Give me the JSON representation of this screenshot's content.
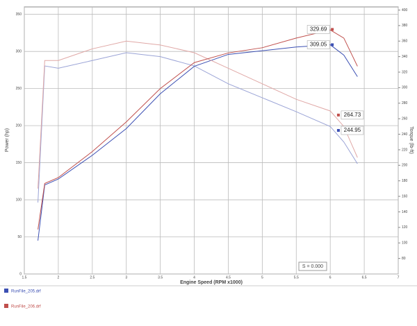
{
  "chart_data": {
    "type": "line",
    "xlabel": "Engine Speed (RPM x1000)",
    "ylabel": "Power (hp)",
    "y2label": "Torque (lb-ft)",
    "x": [
      1.7,
      1.8,
      2.0,
      2.5,
      3.0,
      3.5,
      4.0,
      4.5,
      5.0,
      5.5,
      6.0,
      6.2,
      6.4
    ],
    "runs": [
      {
        "name": "RunFile_205.drf",
        "color": "#3b4fb3",
        "torque_color": "#9aa3d6",
        "power": [
          45,
          120,
          128,
          160,
          196,
          243,
          280,
          296,
          301,
          306,
          309,
          295,
          266
        ],
        "torque": [
          152,
          328,
          325,
          335,
          345,
          340,
          328,
          305,
          287,
          269,
          250,
          230,
          202
        ]
      },
      {
        "name": "RunFile_206.drf",
        "color": "#c0504d",
        "torque_color": "#e0a8a6",
        "power": [
          60,
          122,
          130,
          165,
          205,
          250,
          285,
          298,
          305,
          318,
          329,
          318,
          280
        ],
        "torque": [
          170,
          335,
          335,
          350,
          360,
          355,
          345,
          325,
          305,
          285,
          270,
          250,
          210
        ]
      }
    ],
    "annotations": [
      {
        "value": 329.69,
        "x": 6.03,
        "axis": "y",
        "run": 1
      },
      {
        "value": 309.05,
        "x": 6.03,
        "axis": "y",
        "run": 0
      },
      {
        "value": 264.73,
        "x": 6.12,
        "axis": "y2",
        "run": 1
      },
      {
        "value": 244.95,
        "x": 6.12,
        "axis": "y2",
        "run": 0
      }
    ],
    "smoothing": "S = 0.000",
    "xlim": [
      1.5,
      7.0
    ],
    "xticks": [
      1.5,
      2,
      2.5,
      3,
      3.5,
      4,
      4.5,
      5,
      5.5,
      6,
      6.5,
      7
    ],
    "ylim": [
      0,
      360
    ],
    "yticks": [
      0,
      50,
      100,
      150,
      200,
      250,
      300,
      350
    ],
    "y2lim": [
      60,
      404
    ],
    "y2ticks": [
      80,
      100,
      120,
      140,
      160,
      180,
      200,
      220,
      240,
      260,
      280,
      300,
      320,
      340,
      360,
      380,
      400
    ],
    "grid": true
  }
}
